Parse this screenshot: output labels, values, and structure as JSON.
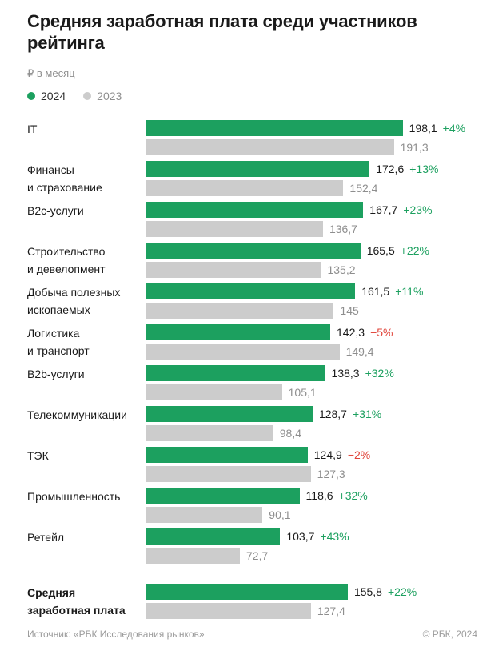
{
  "page": {
    "title": "Средняя заработная плата среди участников\nрейтинга",
    "unit_label": "₽ в месяц",
    "legend": [
      {
        "label": "2024"
      },
      {
        "label": "2023"
      }
    ],
    "footer_source": "Источник: «РБК Исследования рынков»",
    "footer_copyright": "© РБК, 2024"
  },
  "colors": {
    "green": "#1ca05f",
    "gray_bar": "#cccccc",
    "red": "#e0443a",
    "gray_text": "#8e8e8e"
  },
  "chart_data": {
    "type": "bar",
    "orientation": "horizontal",
    "title": "Средняя заработная плата среди участников рейтинга",
    "unit": "₽ в месяц",
    "series": [
      "2024",
      "2023"
    ],
    "legend_position": "top-left",
    "grid": false,
    "max_value": 198.1,
    "rows": [
      {
        "label": "IT",
        "y2024": 198.1,
        "y2024_label": "198,1",
        "y2023": 191.3,
        "y2023_label": "191,3",
        "change": "+4%",
        "negative": false,
        "summary": false
      },
      {
        "label": "Финансы\nи страхование",
        "y2024": 172.6,
        "y2024_label": "172,6",
        "y2023": 152.4,
        "y2023_label": "152,4",
        "change": "+13%",
        "negative": false,
        "summary": false
      },
      {
        "label": "B2c-услуги",
        "y2024": 167.7,
        "y2024_label": "167,7",
        "y2023": 136.7,
        "y2023_label": "136,7",
        "change": "+23%",
        "negative": false,
        "summary": false
      },
      {
        "label": "Строительство\nи девелопмент",
        "y2024": 165.5,
        "y2024_label": "165,5",
        "y2023": 135.2,
        "y2023_label": "135,2",
        "change": "+22%",
        "negative": false,
        "summary": false
      },
      {
        "label": "Добыча полезных\nископаемых",
        "y2024": 161.5,
        "y2024_label": "161,5",
        "y2023": 145,
        "y2023_label": "145",
        "change": "+11%",
        "negative": false,
        "summary": false
      },
      {
        "label": "Логистика\nи транспорт",
        "y2024": 142.3,
        "y2024_label": "142,3",
        "y2023": 149.4,
        "y2023_label": "149,4",
        "change": "−5%",
        "negative": true,
        "summary": false
      },
      {
        "label": "B2b-услуги",
        "y2024": 138.3,
        "y2024_label": "138,3",
        "y2023": 105.1,
        "y2023_label": "105,1",
        "change": "+32%",
        "negative": false,
        "summary": false
      },
      {
        "label": "Телекоммуникации",
        "y2024": 128.7,
        "y2024_label": "128,7",
        "y2023": 98.4,
        "y2023_label": "98,4",
        "change": "+31%",
        "negative": false,
        "summary": false
      },
      {
        "label": "ТЭК",
        "y2024": 124.9,
        "y2024_label": "124,9",
        "y2023": 127.3,
        "y2023_label": "127,3",
        "change": "−2%",
        "negative": true,
        "summary": false
      },
      {
        "label": "Промышленность",
        "y2024": 118.6,
        "y2024_label": "118,6",
        "y2023": 90.1,
        "y2023_label": "90,1",
        "change": "+32%",
        "negative": false,
        "summary": false
      },
      {
        "label": "Ретейл",
        "y2024": 103.7,
        "y2024_label": "103,7",
        "y2023": 72.7,
        "y2023_label": "72,7",
        "change": "+43%",
        "negative": false,
        "summary": false
      },
      {
        "label": "Средняя\nзаработная плата",
        "y2024": 155.8,
        "y2024_label": "155,8",
        "y2023": 127.4,
        "y2023_label": "127,4",
        "change": "+22%",
        "negative": false,
        "summary": true
      }
    ]
  }
}
